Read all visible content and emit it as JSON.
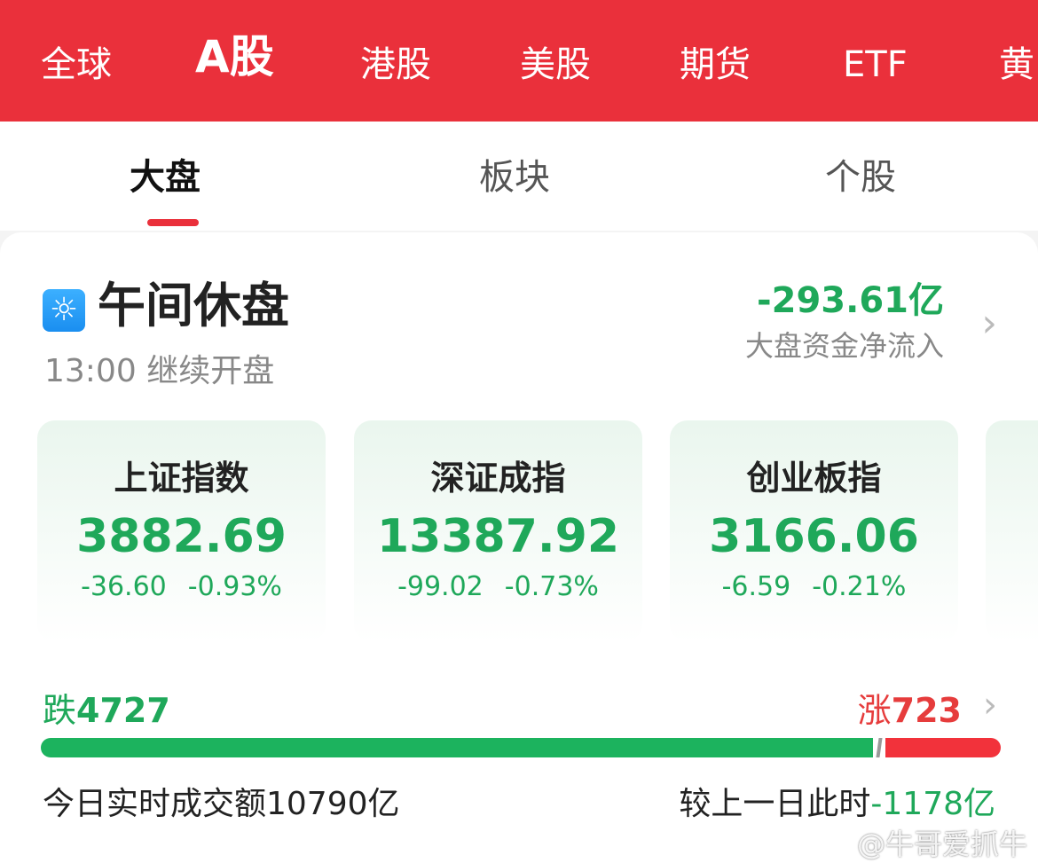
{
  "top_tabs": [
    "全球",
    "A股",
    "港股",
    "美股",
    "期货",
    "ETF",
    "黄"
  ],
  "sub_tabs": [
    "大盘",
    "板块",
    "个股"
  ],
  "status": {
    "title": "午间休盘",
    "subtitle": "13:00 继续开盘",
    "icon": "sun-icon"
  },
  "fund_flow": {
    "value": "-293.61亿",
    "label": "大盘资金净流入"
  },
  "indices": [
    {
      "name": "上证指数",
      "value": "3882.69",
      "change": "-36.60",
      "pct": "-0.93%"
    },
    {
      "name": "深证成指",
      "value": "13387.92",
      "change": "-99.02",
      "pct": "-0.73%"
    },
    {
      "name": "创业板指",
      "value": "3166.06",
      "change": "-6.59",
      "pct": "-0.21%"
    }
  ],
  "breadth": {
    "down_label": "跌",
    "down": "4727",
    "up_label": "涨",
    "up": "723",
    "down_fraction": 0.867
  },
  "volume": {
    "label": "今日实时成交额10790亿",
    "compare_label": "较上一日此时",
    "compare_value": "-1178亿"
  },
  "watermark": "@牛哥爱抓牛",
  "colors": {
    "brand": "#ea303b",
    "down": "#1fa85a",
    "up": "#e63c3c"
  }
}
